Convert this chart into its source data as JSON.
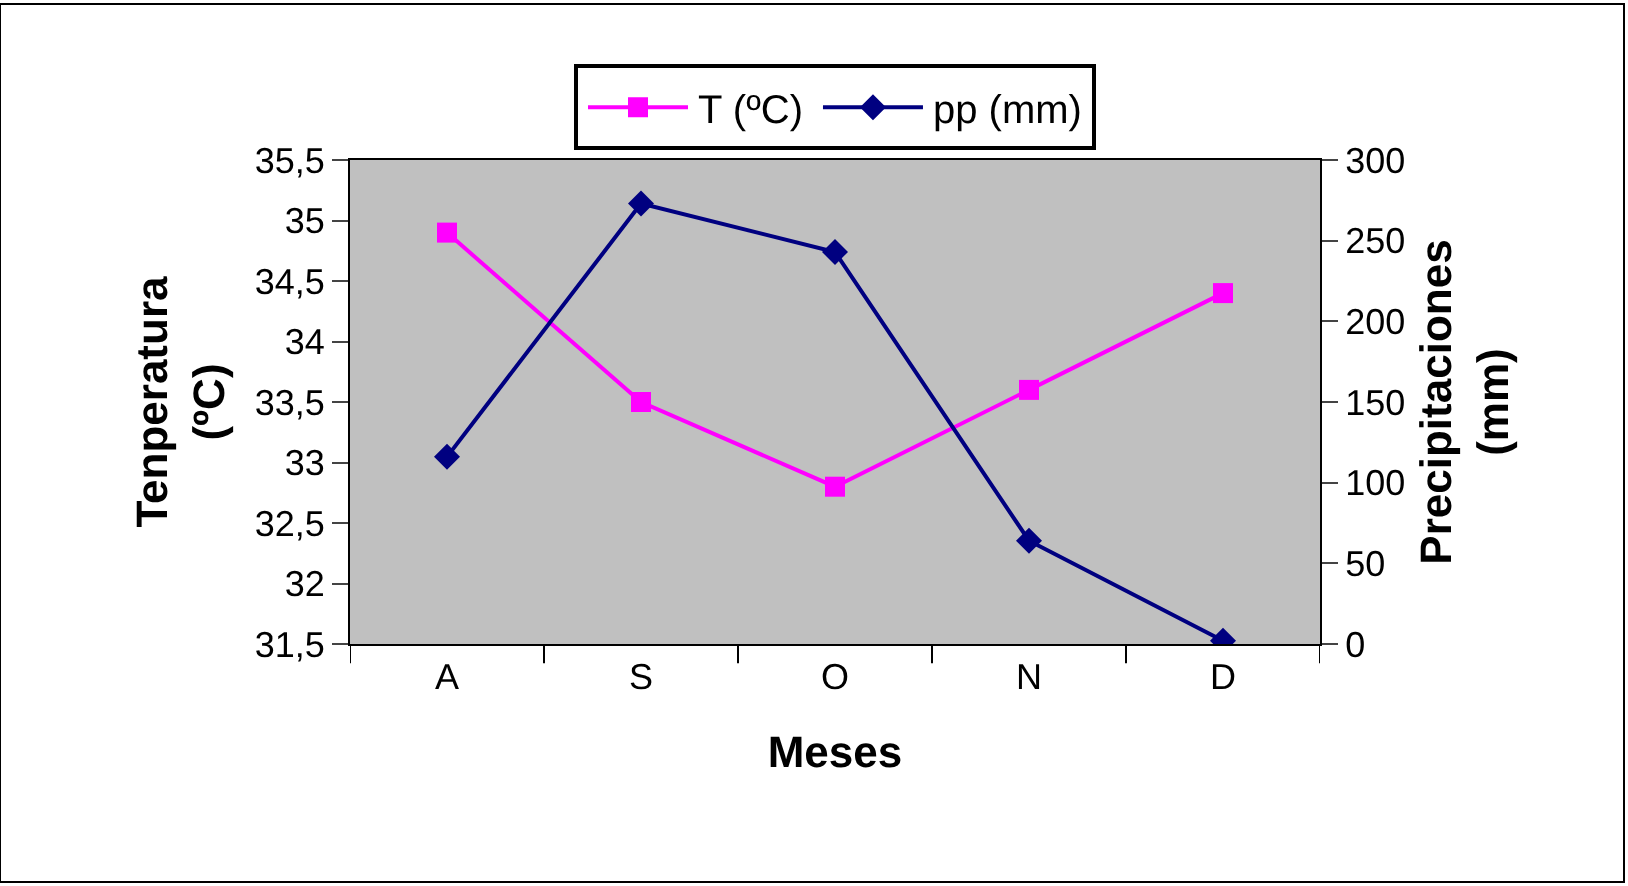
{
  "chart_data": {
    "type": "line",
    "xlabel": "Meses",
    "ylabel": "Tenperatura\n(ºC)",
    "y2label": "Precipitaciones\n(mm)",
    "categories": [
      "A",
      "S",
      "O",
      "N",
      "D"
    ],
    "series": [
      {
        "name": "T (ºC)",
        "color": "#ff00ff",
        "marker": "square",
        "values": [
          34.9,
          33.5,
          32.8,
          33.6,
          34.4
        ]
      },
      {
        "name": "pp (mm)",
        "color": "#000080",
        "marker": "diamond",
        "axis": "y2",
        "values": [
          116,
          273,
          243,
          64,
          2
        ]
      }
    ],
    "ylim": [
      31.5,
      35.5
    ],
    "yticks": [
      {
        "value": 31.5,
        "label": "31,5"
      },
      32,
      {
        "value": 32.5,
        "label": "32,5"
      },
      33,
      {
        "value": 33.5,
        "label": "33,5"
      },
      34,
      {
        "value": 34.5,
        "label": "34,5"
      },
      35,
      {
        "value": 35.5,
        "label": "35,5"
      }
    ],
    "y2lim": [
      0,
      300
    ],
    "y2ticks": [
      0,
      50,
      100,
      150,
      200,
      250,
      300
    ],
    "grid": false,
    "legend": "top",
    "line_style": "solid"
  }
}
